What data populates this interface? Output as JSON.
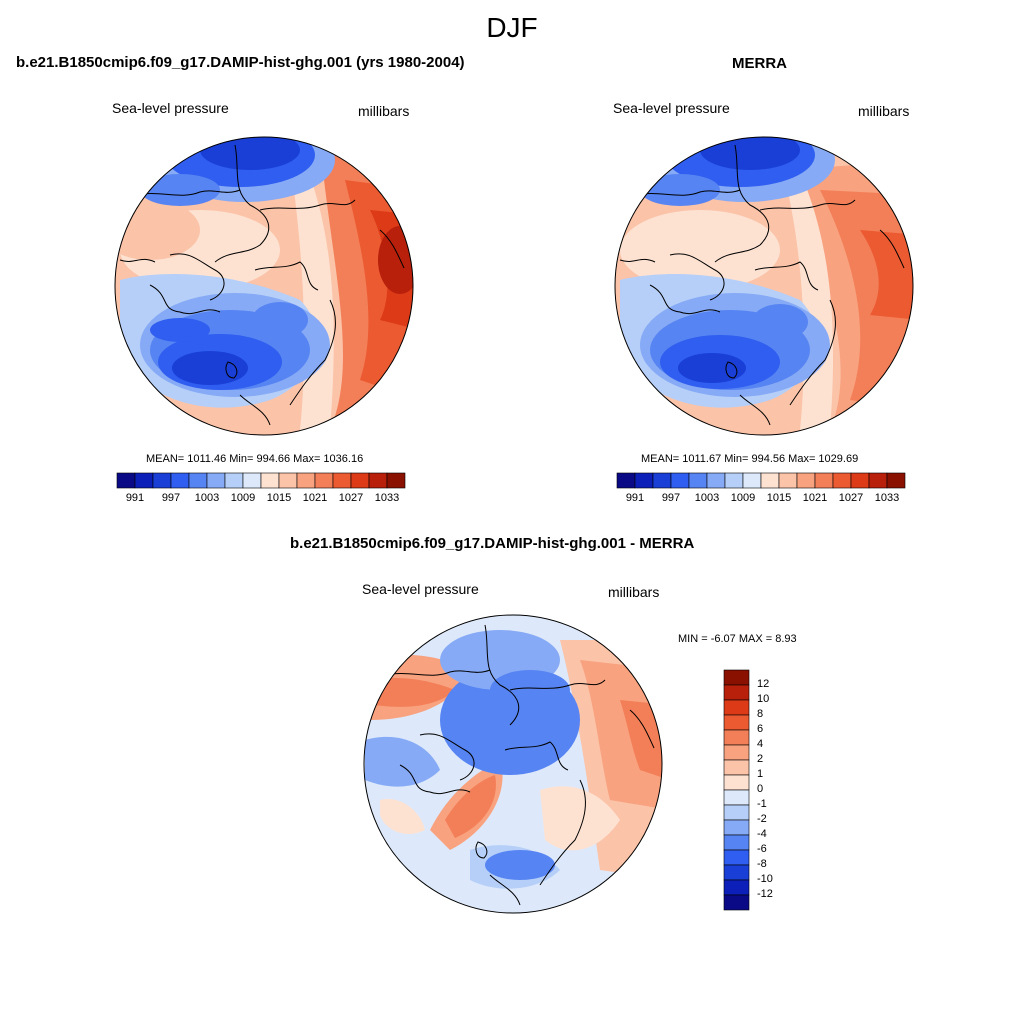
{
  "figure": {
    "title": "DJF"
  },
  "panels": [
    {
      "title": "b.e21.B1850cmip6.f09_g17.DAMIP-hist-ghg.001 (yrs 1980-2004)",
      "left_label": "Sea-level pressure",
      "right_label": "millibars",
      "stats": "MEAN= 1011.46  Min= 994.66  Max= 1036.16"
    },
    {
      "title": "MERRA",
      "left_label": "Sea-level pressure",
      "right_label": "millibars",
      "stats": "MEAN= 1011.67  Min= 994.56  Max= 1029.69"
    },
    {
      "title": "b.e21.B1850cmip6.f09_g17.DAMIP-hist-ghg.001 - MERRA",
      "left_label": "Sea-level pressure",
      "right_label": "millibars",
      "stats": "MIN =  -6.07 MAX =   8.93"
    }
  ],
  "chart_data": [
    {
      "type": "heatmap",
      "projection": "polar-stereographic",
      "title": "b.e21.B1850cmip6.f09_g17.DAMIP-hist-ghg.001 (yrs 1980-2004)",
      "field": "Sea-level pressure",
      "units": "millibars",
      "mean": 1011.46,
      "min": 994.66,
      "max": 1036.16,
      "colorbar_orientation": "horizontal",
      "colorbar_ticks": [
        "991",
        "997",
        "1003",
        "1009",
        "1015",
        "1021",
        "1027",
        "1033"
      ],
      "colors": [
        "#0a0a86",
        "#0c1fb8",
        "#1a3fd6",
        "#2f5ef0",
        "#5684f2",
        "#86aaf5",
        "#b6cff8",
        "#dde9fb",
        "#fde2d2",
        "#fbc3a8",
        "#f8a27f",
        "#f37f58",
        "#ec5a32",
        "#dd3a17",
        "#b8200b",
        "#8a1100"
      ]
    },
    {
      "type": "heatmap",
      "projection": "polar-stereographic",
      "title": "MERRA",
      "field": "Sea-level pressure",
      "units": "millibars",
      "mean": 1011.67,
      "min": 994.56,
      "max": 1029.69,
      "colorbar_orientation": "horizontal",
      "colorbar_ticks": [
        "991",
        "997",
        "1003",
        "1009",
        "1015",
        "1021",
        "1027",
        "1033"
      ],
      "colors": [
        "#0a0a86",
        "#0c1fb8",
        "#1a3fd6",
        "#2f5ef0",
        "#5684f2",
        "#86aaf5",
        "#b6cff8",
        "#dde9fb",
        "#fde2d2",
        "#fbc3a8",
        "#f8a27f",
        "#f37f58",
        "#ec5a32",
        "#dd3a17",
        "#b8200b",
        "#8a1100"
      ]
    },
    {
      "type": "heatmap",
      "projection": "polar-stereographic",
      "title": "b.e21.B1850cmip6.f09_g17.DAMIP-hist-ghg.001 - MERRA",
      "field": "Sea-level pressure",
      "units": "millibars",
      "min": -6.07,
      "max": 8.93,
      "colorbar_orientation": "vertical",
      "colorbar_ticks": [
        "12",
        "10",
        "8",
        "6",
        "4",
        "2",
        "1",
        "0",
        "-1",
        "-2",
        "-4",
        "-6",
        "-8",
        "-10",
        "-12"
      ],
      "colors": [
        "#8a1100",
        "#b8200b",
        "#dd3a17",
        "#ec5a32",
        "#f37f58",
        "#f8a27f",
        "#fbc3a8",
        "#fde2d2",
        "#dde9fb",
        "#b6cff8",
        "#86aaf5",
        "#5684f2",
        "#2f5ef0",
        "#1a3fd6",
        "#0c1fb8",
        "#0a0a86"
      ]
    }
  ]
}
